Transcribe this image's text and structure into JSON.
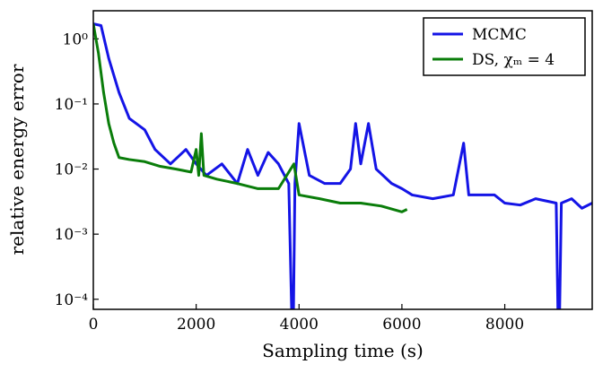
{
  "chart_data": {
    "type": "line",
    "xlabel": "Sampling time (s)",
    "ylabel": "relative energy error",
    "xlim": [
      0,
      9700
    ],
    "xticks": [
      0,
      2000,
      4000,
      6000,
      8000
    ],
    "ylim": [
      7e-05,
      2.7
    ],
    "log_y": true,
    "yticks": [
      {
        "value": 0.0001,
        "label": "10⁻⁴"
      },
      {
        "value": 0.001,
        "label": "10⁻³"
      },
      {
        "value": 0.01,
        "label": "10⁻²"
      },
      {
        "value": 0.1,
        "label": "10⁻¹"
      },
      {
        "value": 1,
        "label": "10⁰"
      }
    ],
    "legend": "upper right",
    "series": [
      {
        "name": "MCMC",
        "color": "#1414e6",
        "x": [
          0,
          150,
          300,
          500,
          700,
          1000,
          1200,
          1500,
          1800,
          2000,
          2200,
          2500,
          2800,
          3000,
          3200,
          3400,
          3600,
          3800,
          3880,
          3920,
          4000,
          4200,
          4500,
          4800,
          5000,
          5100,
          5200,
          5350,
          5500,
          5800,
          6000,
          6200,
          6600,
          7000,
          7200,
          7300,
          7500,
          7800,
          8000,
          8300,
          8600,
          9000,
          9050,
          9100,
          9300,
          9500,
          9700
        ],
        "values": [
          1.7,
          1.6,
          0.5,
          0.15,
          0.06,
          0.04,
          0.02,
          0.012,
          0.02,
          0.012,
          0.008,
          0.012,
          0.006,
          0.02,
          0.008,
          0.018,
          0.012,
          0.006,
          1e-05,
          0.006,
          0.05,
          0.008,
          0.006,
          0.006,
          0.01,
          0.05,
          0.012,
          0.05,
          0.01,
          0.006,
          0.005,
          0.004,
          0.0035,
          0.004,
          0.025,
          0.004,
          0.004,
          0.004,
          0.003,
          0.0028,
          0.0035,
          0.003,
          1e-05,
          0.003,
          0.0035,
          0.0025,
          0.003
        ]
      },
      {
        "name": "DS, χₘ = 4",
        "color": "#0a7d0a",
        "x": [
          0,
          100,
          200,
          300,
          400,
          500,
          700,
          1000,
          1300,
          1600,
          1900,
          2000,
          2050,
          2100,
          2150,
          2400,
          2800,
          3200,
          3600,
          3900,
          4000,
          4400,
          4800,
          5200,
          5600,
          6000,
          6100
        ],
        "values": [
          1.7,
          0.6,
          0.15,
          0.05,
          0.025,
          0.015,
          0.014,
          0.013,
          0.011,
          0.01,
          0.009,
          0.02,
          0.008,
          0.035,
          0.008,
          0.007,
          0.006,
          0.005,
          0.005,
          0.012,
          0.004,
          0.0035,
          0.003,
          0.003,
          0.0027,
          0.0022,
          0.0024
        ]
      }
    ]
  }
}
